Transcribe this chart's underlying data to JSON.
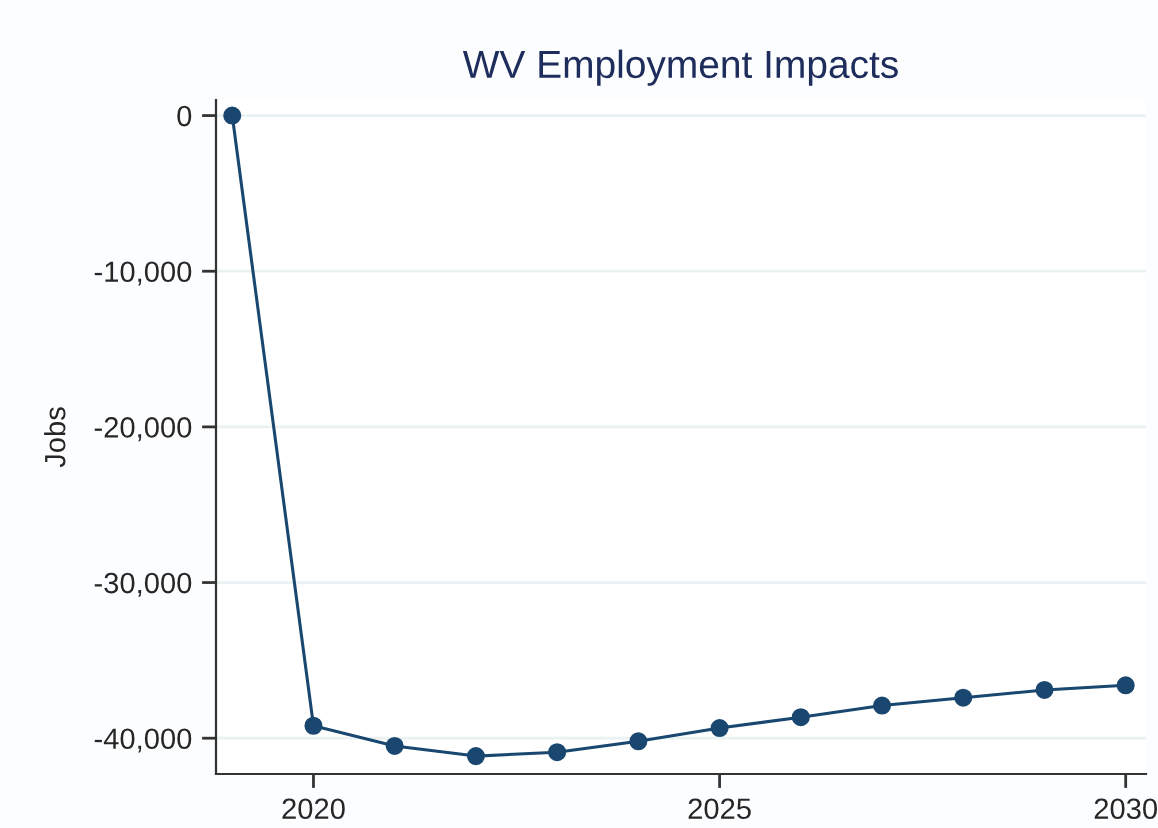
{
  "chart_data": {
    "type": "line",
    "title": "WV Employment Impacts",
    "ylabel": "Jobs",
    "x": [
      2019,
      2020,
      2021,
      2022,
      2023,
      2024,
      2025,
      2026,
      2027,
      2028,
      2029,
      2030
    ],
    "series": [
      {
        "color": "#1a476f",
        "values": [
          0,
          -39200,
          -40500,
          -41150,
          -40900,
          -40200,
          -39350,
          -38650,
          -37900,
          -37400,
          -36900,
          -36600
        ]
      }
    ],
    "xlim": [
      2018.8,
      2030.25
    ],
    "xticks": [
      2020,
      2025,
      2030
    ],
    "ylim": [
      -42300,
      1000
    ],
    "yticks": [
      {
        "value": 0,
        "label": "0"
      },
      {
        "value": -10000,
        "label": "-10,000"
      },
      {
        "value": -20000,
        "label": "-20,000"
      },
      {
        "value": -30000,
        "label": "-30,000"
      },
      {
        "value": -40000,
        "label": "-40,000"
      }
    ],
    "grid": "y",
    "marker": "circle",
    "line_style": "solid"
  }
}
